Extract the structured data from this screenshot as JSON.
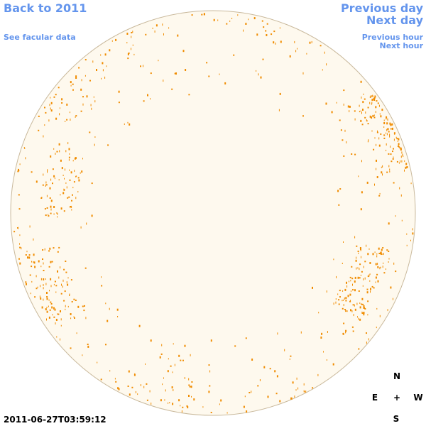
{
  "navigation": {
    "back": "Back to 2011",
    "previous_day": "Previous day",
    "next_day": "Next day",
    "facular_data": "See facular data",
    "previous_hour": "Previous hour",
    "next_hour": "Next hour"
  },
  "compass": {
    "north": "N",
    "east": "E",
    "center": "+",
    "west": "W",
    "south": "S"
  },
  "timestamp": "2011-06-27T03:59:12"
}
